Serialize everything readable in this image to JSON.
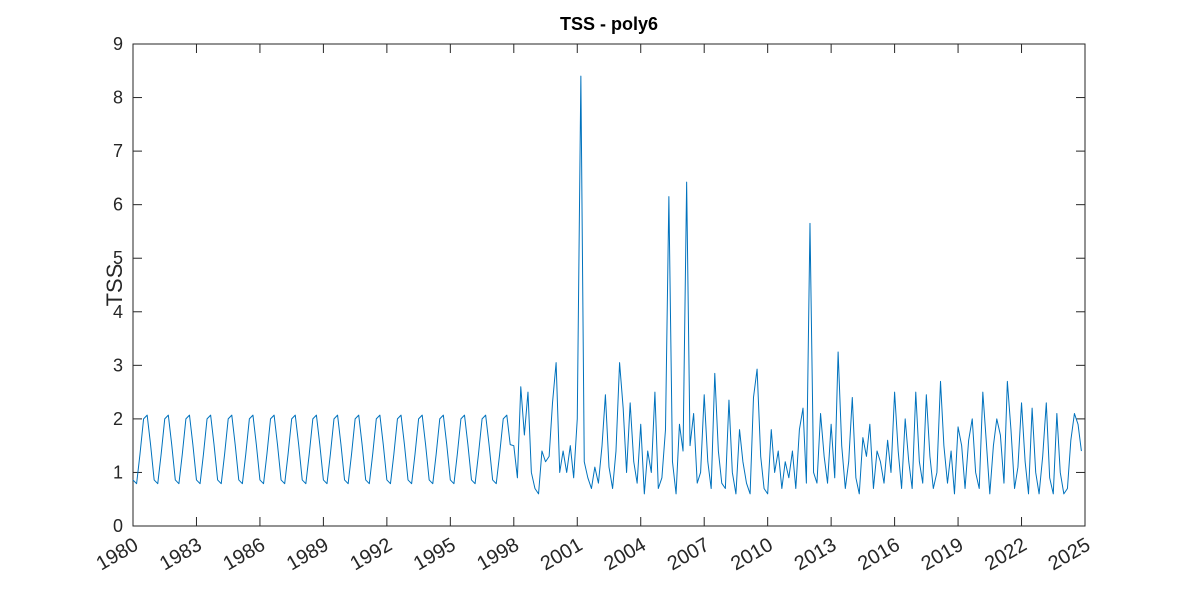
{
  "chart_data": {
    "type": "line",
    "title": "TSS - poly6",
    "y_label": "TSS",
    "xlim": [
      1980,
      2025
    ],
    "ylim": [
      0,
      9
    ],
    "xticks": [
      1980,
      1983,
      1986,
      1989,
      1992,
      1995,
      1998,
      2001,
      2004,
      2007,
      2010,
      2013,
      2016,
      2019,
      2022,
      2025
    ],
    "yticks": [
      0,
      1,
      2,
      3,
      4,
      5,
      6,
      7,
      8,
      9
    ],
    "series": [
      {
        "color": "#0072BD",
        "x": [
          1980,
          1980.17,
          1980.33,
          1980.5,
          1980.67,
          1980.83,
          1981,
          1981.17,
          1981.33,
          1981.5,
          1981.67,
          1981.83,
          1982,
          1982.17,
          1982.33,
          1982.5,
          1982.67,
          1982.83,
          1983,
          1983.17,
          1983.33,
          1983.5,
          1983.67,
          1983.83,
          1984,
          1984.17,
          1984.33,
          1984.5,
          1984.67,
          1984.83,
          1985,
          1985.17,
          1985.33,
          1985.5,
          1985.67,
          1985.83,
          1986,
          1986.17,
          1986.33,
          1986.5,
          1986.67,
          1986.83,
          1987,
          1987.17,
          1987.33,
          1987.5,
          1987.67,
          1987.83,
          1988,
          1988.17,
          1988.33,
          1988.5,
          1988.67,
          1988.83,
          1989,
          1989.17,
          1989.33,
          1989.5,
          1989.67,
          1989.83,
          1990,
          1990.17,
          1990.33,
          1990.5,
          1990.67,
          1990.83,
          1991,
          1991.17,
          1991.33,
          1991.5,
          1991.67,
          1991.83,
          1992,
          1992.17,
          1992.33,
          1992.5,
          1992.67,
          1992.83,
          1993,
          1993.17,
          1993.33,
          1993.5,
          1993.67,
          1993.83,
          1994,
          1994.17,
          1994.33,
          1994.5,
          1994.67,
          1994.83,
          1995,
          1995.17,
          1995.33,
          1995.5,
          1995.67,
          1995.83,
          1996,
          1996.17,
          1996.33,
          1996.5,
          1996.67,
          1996.83,
          1997,
          1997.17,
          1997.33,
          1997.5,
          1997.67,
          1997.83,
          1998,
          1998.17,
          1998.33,
          1998.5,
          1998.67,
          1998.83,
          1999,
          1999.17,
          1999.33,
          1999.5,
          1999.67,
          1999.83,
          2000,
          2000.17,
          2000.33,
          2000.5,
          2000.67,
          2000.83,
          2001,
          2001.17,
          2001.33,
          2001.5,
          2001.67,
          2001.83,
          2002,
          2002.17,
          2002.33,
          2002.5,
          2002.67,
          2002.83,
          2003,
          2003.17,
          2003.33,
          2003.5,
          2003.67,
          2003.83,
          2004,
          2004.17,
          2004.33,
          2004.5,
          2004.67,
          2004.83,
          2005,
          2005.17,
          2005.33,
          2005.5,
          2005.67,
          2005.83,
          2006,
          2006.17,
          2006.33,
          2006.5,
          2006.67,
          2006.83,
          2007,
          2007.17,
          2007.33,
          2007.5,
          2007.67,
          2007.83,
          2008,
          2008.17,
          2008.33,
          2008.5,
          2008.67,
          2008.83,
          2009,
          2009.17,
          2009.33,
          2009.5,
          2009.67,
          2009.83,
          2010,
          2010.17,
          2010.33,
          2010.5,
          2010.67,
          2010.83,
          2011,
          2011.17,
          2011.33,
          2011.5,
          2011.67,
          2011.83,
          2012,
          2012.17,
          2012.33,
          2012.5,
          2012.67,
          2012.83,
          2013,
          2013.17,
          2013.33,
          2013.5,
          2013.67,
          2013.83,
          2014,
          2014.17,
          2014.33,
          2014.5,
          2014.67,
          2014.83,
          2015,
          2015.17,
          2015.33,
          2015.5,
          2015.67,
          2015.83,
          2016,
          2016.17,
          2016.33,
          2016.5,
          2016.67,
          2016.83,
          2017,
          2017.17,
          2017.33,
          2017.5,
          2017.67,
          2017.83,
          2018,
          2018.17,
          2018.33,
          2018.5,
          2018.67,
          2018.83,
          2019,
          2019.17,
          2019.33,
          2019.5,
          2019.67,
          2019.83,
          2020,
          2020.17,
          2020.33,
          2020.5,
          2020.67,
          2020.83,
          2021,
          2021.17,
          2021.33,
          2021.5,
          2021.67,
          2021.83,
          2022,
          2022.17,
          2022.33,
          2022.5,
          2022.67,
          2022.83,
          2023,
          2023.17,
          2023.33,
          2023.5,
          2023.67,
          2023.83,
          2024,
          2024.17,
          2024.33,
          2024.5,
          2024.67,
          2024.83
        ],
        "values": [
          0.86,
          0.79,
          1.34,
          2.0,
          2.07,
          1.52,
          0.86,
          0.79,
          1.34,
          2.0,
          2.07,
          1.52,
          0.86,
          0.79,
          1.34,
          2.0,
          2.07,
          1.52,
          0.86,
          0.79,
          1.34,
          2.0,
          2.07,
          1.52,
          0.86,
          0.79,
          1.34,
          2.0,
          2.07,
          1.52,
          0.86,
          0.79,
          1.34,
          2.0,
          2.07,
          1.52,
          0.86,
          0.79,
          1.34,
          2.0,
          2.07,
          1.52,
          0.86,
          0.79,
          1.34,
          2.0,
          2.07,
          1.52,
          0.86,
          0.79,
          1.34,
          2.0,
          2.07,
          1.52,
          0.86,
          0.79,
          1.34,
          2.0,
          2.07,
          1.52,
          0.86,
          0.79,
          1.34,
          2.0,
          2.07,
          1.52,
          0.86,
          0.79,
          1.34,
          2.0,
          2.07,
          1.52,
          0.86,
          0.79,
          1.34,
          2.0,
          2.07,
          1.52,
          0.86,
          0.79,
          1.34,
          2.0,
          2.07,
          1.52,
          0.86,
          0.79,
          1.34,
          2.0,
          2.07,
          1.52,
          0.86,
          0.79,
          1.34,
          2.0,
          2.07,
          1.52,
          0.86,
          0.79,
          1.34,
          2.0,
          2.07,
          1.52,
          0.86,
          0.79,
          1.34,
          2.0,
          2.07,
          1.52,
          1.5,
          0.9,
          2.6,
          1.7,
          2.5,
          1.0,
          0.7,
          0.6,
          1.4,
          1.2,
          1.3,
          2.3,
          3.05,
          1.0,
          1.4,
          1.0,
          1.5,
          0.9,
          2.0,
          8.4,
          1.2,
          0.9,
          0.7,
          1.1,
          0.8,
          1.5,
          2.45,
          1.1,
          0.7,
          1.4,
          3.05,
          2.2,
          1.0,
          2.3,
          1.2,
          0.8,
          1.9,
          0.6,
          1.4,
          1.0,
          2.5,
          0.7,
          0.9,
          1.8,
          6.15,
          1.2,
          0.6,
          1.9,
          1.4,
          6.42,
          1.5,
          2.1,
          0.8,
          1.0,
          2.45,
          1.2,
          0.7,
          2.85,
          1.4,
          0.8,
          0.7,
          2.35,
          1.0,
          0.6,
          1.8,
          1.2,
          0.8,
          0.6,
          2.4,
          2.93,
          1.3,
          0.7,
          0.6,
          1.8,
          1.0,
          1.4,
          0.7,
          1.2,
          0.9,
          1.4,
          0.7,
          1.8,
          2.2,
          0.8,
          5.65,
          1.0,
          0.8,
          2.1,
          1.3,
          0.8,
          1.9,
          0.9,
          3.25,
          1.5,
          0.7,
          1.2,
          2.4,
          0.9,
          0.6,
          1.65,
          1.3,
          1.9,
          0.7,
          1.4,
          1.2,
          0.8,
          1.6,
          1.0,
          2.5,
          1.4,
          0.7,
          2.0,
          1.2,
          0.7,
          2.5,
          1.2,
          0.8,
          2.45,
          1.3,
          0.7,
          1.0,
          2.7,
          1.5,
          0.8,
          1.4,
          0.6,
          1.85,
          1.5,
          0.7,
          1.6,
          2.0,
          1.0,
          0.7,
          2.5,
          1.6,
          0.6,
          1.5,
          2.0,
          1.7,
          0.8,
          2.7,
          1.8,
          0.7,
          1.1,
          2.3,
          1.2,
          0.6,
          2.2,
          1.0,
          0.6,
          1.3,
          2.3,
          0.9,
          0.6,
          2.1,
          1.0,
          0.6,
          0.7,
          1.6,
          2.1,
          1.9,
          1.4
        ]
      }
    ]
  }
}
